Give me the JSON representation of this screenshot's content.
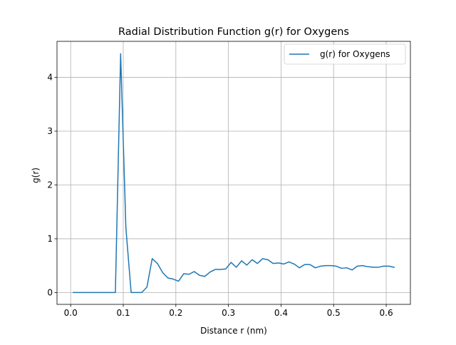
{
  "chart_data": {
    "type": "line",
    "title": "Radial Distribution Function g(r) for Oxygens",
    "xlabel": "Distance r (nm)",
    "ylabel": "g(r)",
    "xlim": [
      -0.026,
      0.646
    ],
    "ylim": [
      -0.22,
      4.67
    ],
    "xticks": [
      {
        "value": 0.0,
        "label": "0.0"
      },
      {
        "value": 0.1,
        "label": "0.1"
      },
      {
        "value": 0.2,
        "label": "0.2"
      },
      {
        "value": 0.3,
        "label": "0.3"
      },
      {
        "value": 0.4,
        "label": "0.4"
      },
      {
        "value": 0.5,
        "label": "0.5"
      },
      {
        "value": 0.6,
        "label": "0.6"
      }
    ],
    "yticks": [
      {
        "value": 0,
        "label": "0"
      },
      {
        "value": 1,
        "label": "1"
      },
      {
        "value": 2,
        "label": "2"
      },
      {
        "value": 3,
        "label": "3"
      },
      {
        "value": 4,
        "label": "4"
      }
    ],
    "grid": true,
    "legend_position": "upper right",
    "series": [
      {
        "name": "g(r) for Oxygens",
        "color": "#1f77b4",
        "x": [
          0.005,
          0.015,
          0.025,
          0.035,
          0.045,
          0.055,
          0.065,
          0.075,
          0.085,
          0.095,
          0.105,
          0.115,
          0.125,
          0.135,
          0.145,
          0.155,
          0.165,
          0.175,
          0.185,
          0.195,
          0.205,
          0.215,
          0.225,
          0.235,
          0.245,
          0.255,
          0.265,
          0.275,
          0.285,
          0.295,
          0.305,
          0.315,
          0.325,
          0.335,
          0.345,
          0.355,
          0.365,
          0.375,
          0.385,
          0.395,
          0.405,
          0.415,
          0.425,
          0.435,
          0.445,
          0.455,
          0.465,
          0.475,
          0.485,
          0.495,
          0.505,
          0.515,
          0.525,
          0.535,
          0.545,
          0.555,
          0.565,
          0.575,
          0.585,
          0.595,
          0.605,
          0.615
        ],
        "y": [
          0,
          0,
          0,
          0,
          0,
          0,
          0,
          0,
          0,
          4.44,
          1.2,
          0,
          0,
          0,
          0.1,
          0.63,
          0.54,
          0.37,
          0.27,
          0.25,
          0.21,
          0.35,
          0.34,
          0.39,
          0.32,
          0.3,
          0.38,
          0.43,
          0.43,
          0.44,
          0.56,
          0.47,
          0.59,
          0.51,
          0.61,
          0.54,
          0.63,
          0.61,
          0.54,
          0.55,
          0.53,
          0.57,
          0.53,
          0.46,
          0.52,
          0.52,
          0.46,
          0.49,
          0.5,
          0.5,
          0.49,
          0.45,
          0.46,
          0.42,
          0.49,
          0.5,
          0.48,
          0.47,
          0.47,
          0.49,
          0.49,
          0.47
        ]
      }
    ]
  }
}
